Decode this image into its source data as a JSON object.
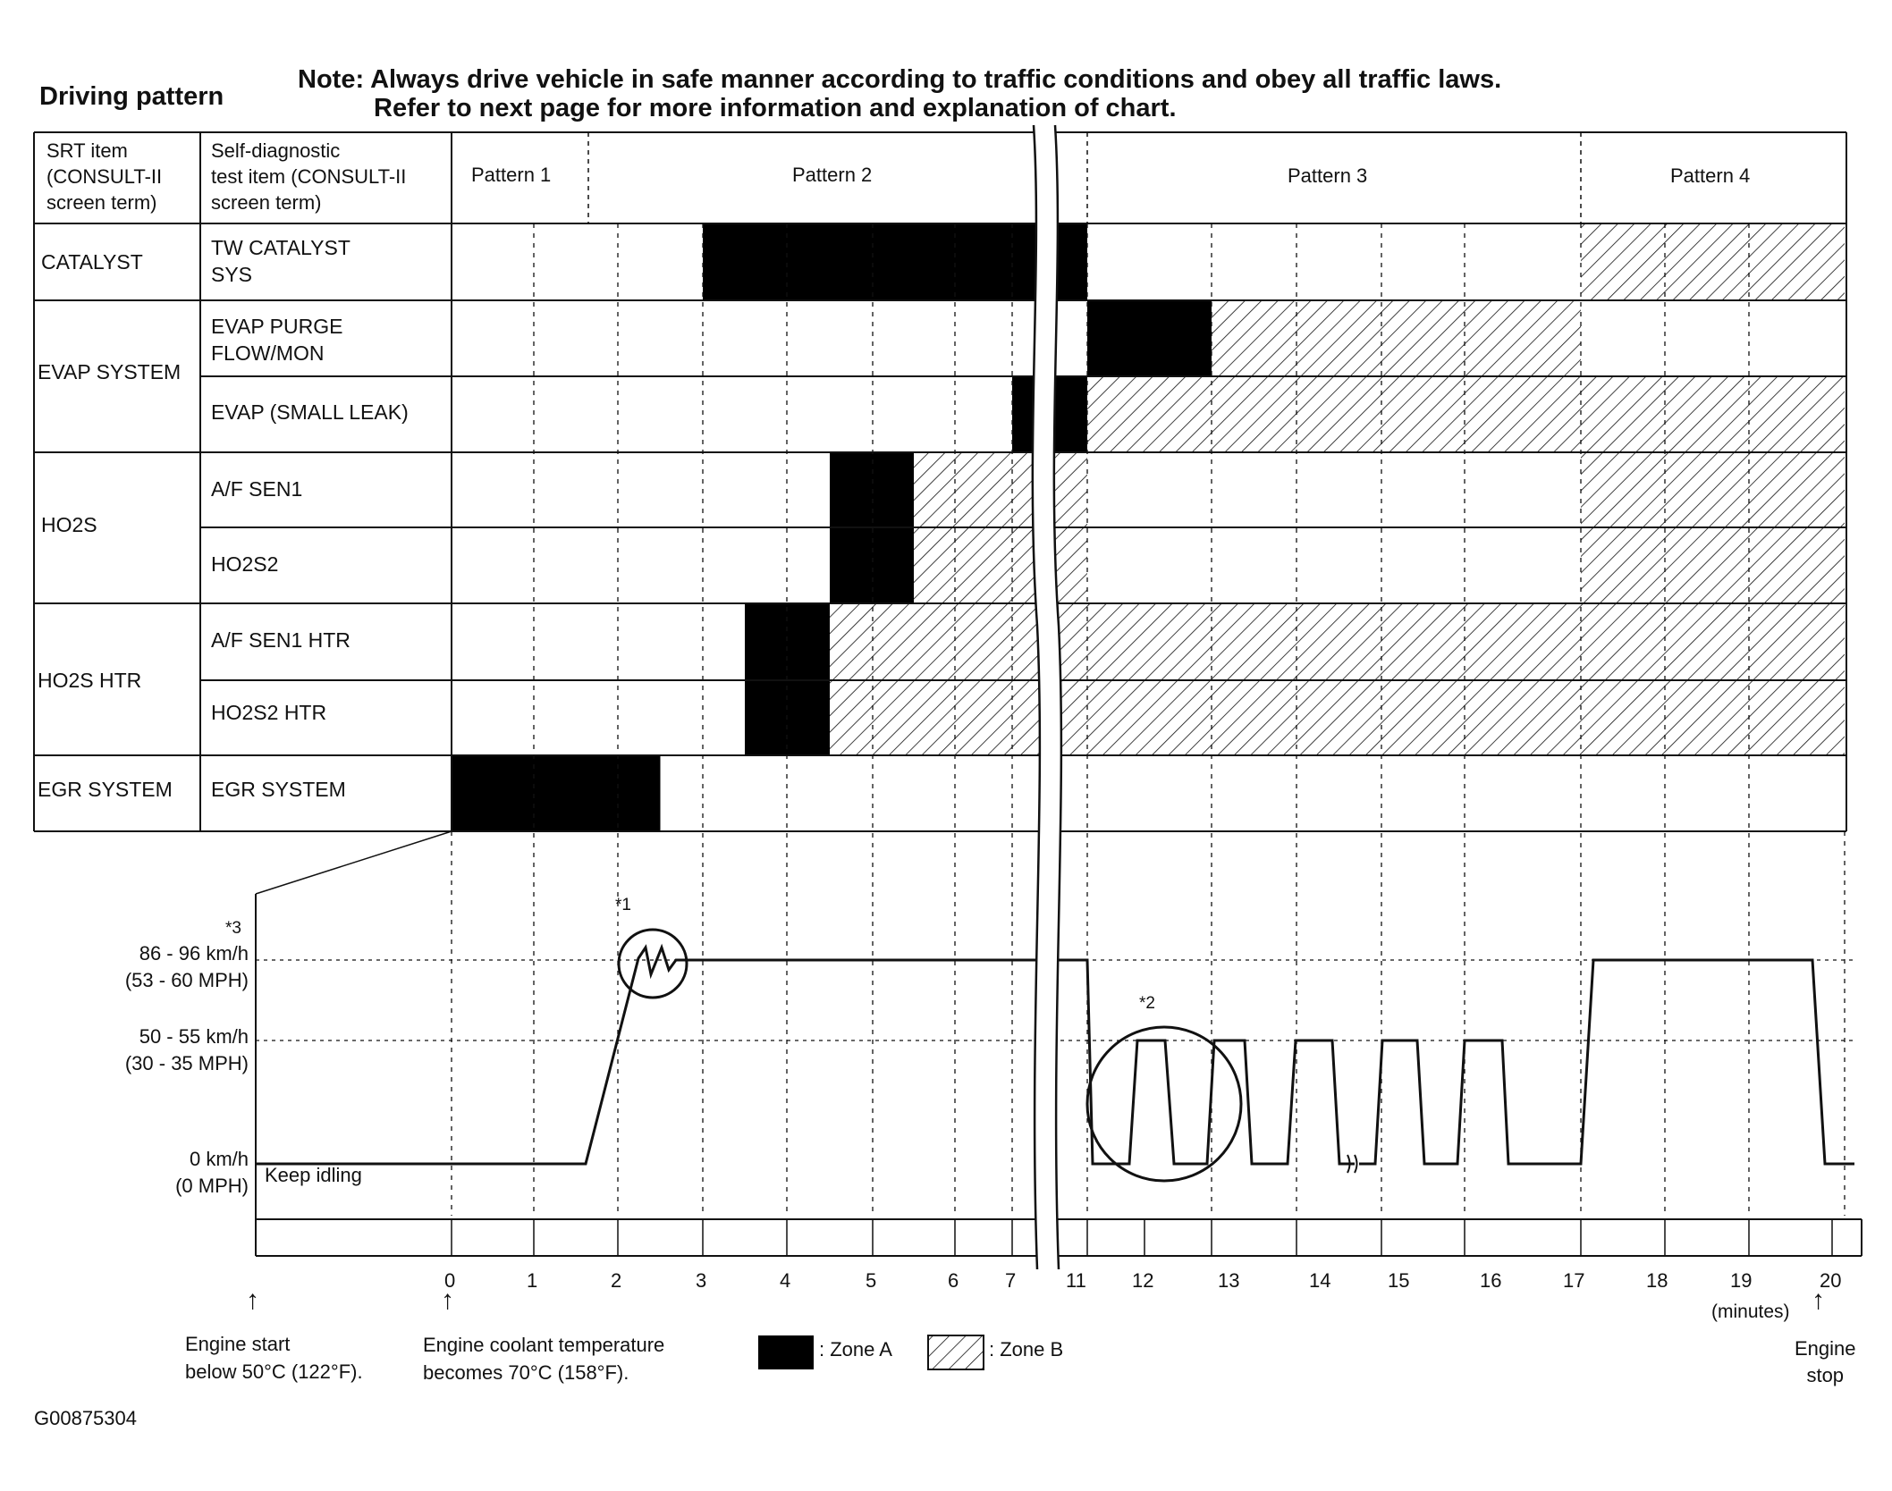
{
  "header": {
    "title": "Driving pattern",
    "note_line1": "Note: Always drive vehicle in safe manner according to traffic conditions and obey all traffic laws.",
    "note_line2": "Refer to next page for more information and explanation of chart."
  },
  "table": {
    "col1_header": [
      "SRT item",
      "(CONSULT-II",
      "screen term)"
    ],
    "col2_header": [
      "Self-diagnostic",
      "test item (CONSULT-II",
      "screen term)"
    ],
    "patterns": [
      "Pattern 1",
      "Pattern 2",
      "Pattern 3",
      "Pattern 4"
    ],
    "groups": [
      {
        "label": "CATALYST"
      },
      {
        "label": "EVAP SYSTEM"
      },
      {
        "label": "HO2S"
      },
      {
        "label": "HO2S HTR"
      },
      {
        "label": "EGR SYSTEM"
      }
    ],
    "items": [
      {
        "label": [
          "TW CATALYST",
          "SYS"
        ],
        "group": "CATALYST",
        "zones": [
          {
            "zone": "A",
            "from": 3,
            "to": 11
          },
          {
            "zone": "B",
            "from": 17,
            "to": 20
          }
        ]
      },
      {
        "label": [
          "EVAP PURGE",
          "FLOW/MON"
        ],
        "group": "EVAP SYSTEM",
        "zones": [
          {
            "zone": "A",
            "from": 11,
            "to": 13
          },
          {
            "zone": "B",
            "from": 13,
            "to": 17
          }
        ]
      },
      {
        "label": [
          "EVAP (SMALL LEAK)"
        ],
        "group": "EVAP SYSTEM",
        "zones": [
          {
            "zone": "A",
            "from": 7,
            "to": 11
          },
          {
            "zone": "B",
            "from": 11,
            "to": 20
          }
        ]
      },
      {
        "label": [
          "A/F SEN1"
        ],
        "group": "HO2S",
        "zones": [
          {
            "zone": "A",
            "from": 4.5,
            "to": 5.5
          },
          {
            "zone": "B",
            "from": 5.5,
            "to": 11
          },
          {
            "zone": "B",
            "from": 17,
            "to": 20
          }
        ]
      },
      {
        "label": [
          "HO2S2"
        ],
        "group": "HO2S",
        "zones": [
          {
            "zone": "A",
            "from": 4.5,
            "to": 5.5
          },
          {
            "zone": "B",
            "from": 5.5,
            "to": 11
          },
          {
            "zone": "B",
            "from": 17,
            "to": 20
          }
        ]
      },
      {
        "label": [
          "A/F SEN1 HTR"
        ],
        "group": "HO2S HTR",
        "zones": [
          {
            "zone": "A",
            "from": 3.5,
            "to": 4.5
          },
          {
            "zone": "B",
            "from": 4.5,
            "to": 20
          }
        ]
      },
      {
        "label": [
          "HO2S2 HTR"
        ],
        "group": "HO2S HTR",
        "zones": [
          {
            "zone": "A",
            "from": 3.5,
            "to": 4.5
          },
          {
            "zone": "B",
            "from": 4.5,
            "to": 20
          }
        ]
      },
      {
        "label": [
          "EGR SYSTEM"
        ],
        "group": "EGR SYSTEM",
        "zones": [
          {
            "zone": "A",
            "from": 0,
            "to": 2.5
          }
        ]
      }
    ]
  },
  "speed_chart": {
    "speed_labels": [
      {
        "line1": "86 - 96 km/h",
        "line2": "(53 - 60 MPH)",
        "note": "*3"
      },
      {
        "line1": "50 - 55 km/h",
        "line2": "(30 - 35 MPH)"
      },
      {
        "line1": "0 km/h",
        "line2": "(0 MPH)"
      }
    ],
    "keep_idling": "Keep idling",
    "note1": "*1",
    "note2": "*2",
    "time_ticks": [
      "0",
      "1",
      "2",
      "3",
      "4",
      "5",
      "6",
      "7",
      "11",
      "12",
      "13",
      "14",
      "15",
      "16",
      "17",
      "18",
      "19",
      "20"
    ],
    "time_unit": "(minutes)"
  },
  "footer": {
    "engine_start": [
      "Engine start",
      "below 50°C (122°F)."
    ],
    "coolant": [
      "Engine coolant temperature",
      "becomes 70°C (158°F)."
    ],
    "zone_a": ": Zone A",
    "zone_b": ": Zone B",
    "engine_stop": [
      "Engine",
      "stop"
    ],
    "figure_id": "G00875304"
  }
}
